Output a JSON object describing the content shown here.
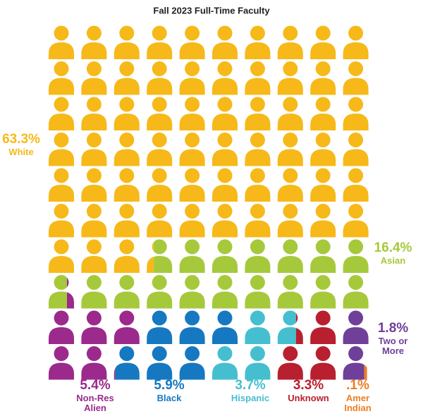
{
  "chart_data": {
    "type": "pictograph",
    "title": "Fall 2023 Full-Time Faculty",
    "categories": [
      "White",
      "Asian",
      "Non-Res Alien",
      "Black",
      "Hispanic",
      "Unknown",
      "Two or More",
      "Amer Indian"
    ],
    "values": [
      63.3,
      16.4,
      5.4,
      5.9,
      3.7,
      3.3,
      1.8,
      0.1
    ],
    "value_labels": [
      "63.3%",
      "16.4%",
      "5.4%",
      "5.9%",
      "3.7%",
      "3.3%",
      "1.8%",
      ".1%"
    ],
    "colors": [
      "#f6b919",
      "#a6c93b",
      "#9b2a8c",
      "#1678c0",
      "#45bfcf",
      "#b8202f",
      "#6f3f99",
      "#ef7d22"
    ]
  }
}
